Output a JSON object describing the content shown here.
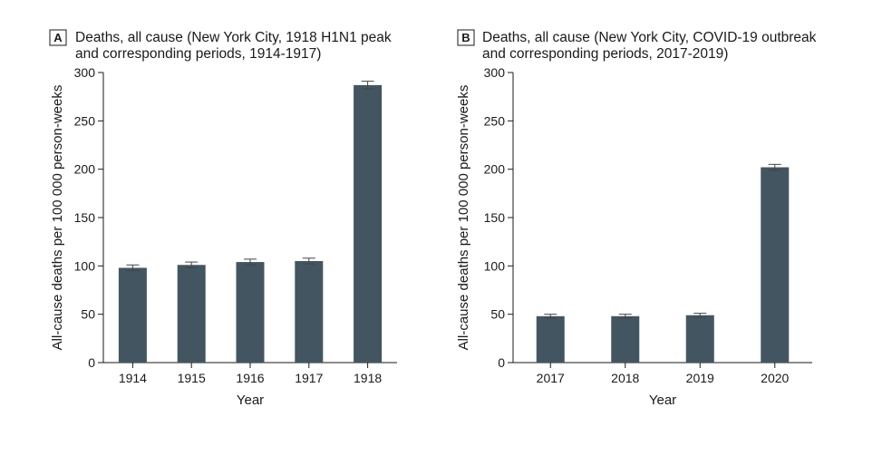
{
  "chart_data": [
    {
      "type": "bar",
      "panel": "A",
      "title_lines": [
        "Deaths, all cause  (New York City, 1918 H1N1 peak",
        "and corresponding periods, 1914-1917)"
      ],
      "categories": [
        "1914",
        "1915",
        "1916",
        "1917",
        "1918"
      ],
      "values": [
        98,
        101,
        104,
        105,
        287
      ],
      "error": [
        3,
        3,
        3,
        3,
        4
      ],
      "xlabel": "Year",
      "ylabel": "All-cause deaths per 100 000 person-weeks",
      "ylim": [
        0,
        300
      ],
      "yticks": [
        "0",
        "50",
        "100",
        "150",
        "200",
        "250",
        "300"
      ],
      "grid": false,
      "bar_color": "#435560"
    },
    {
      "type": "bar",
      "panel": "B",
      "title_lines": [
        "Deaths, all cause (New York City, COVID-19 outbreak",
        "and corresponding periods, 2017-2019)"
      ],
      "categories": [
        "2017",
        "2018",
        "2019",
        "2020"
      ],
      "values": [
        48,
        48,
        49,
        202
      ],
      "error": [
        2,
        2,
        2,
        3
      ],
      "xlabel": "Year",
      "ylabel": "All-cause deaths per 100 000 person-weeks",
      "ylim": [
        0,
        300
      ],
      "yticks": [
        "0",
        "50",
        "100",
        "150",
        "200",
        "250",
        "300"
      ],
      "grid": false,
      "bar_color": "#435560"
    }
  ]
}
